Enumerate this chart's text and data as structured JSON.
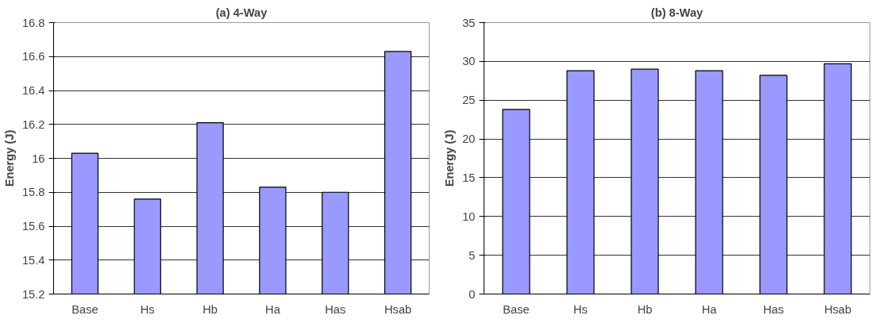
{
  "chart_data": [
    {
      "type": "bar",
      "title": "(a) 4-Way",
      "ylabel": "Energy (J)",
      "categories": [
        "Base",
        "Hs",
        "Hb",
        "Ha",
        "Has",
        "Hsab"
      ],
      "values": [
        16.03,
        15.76,
        16.21,
        15.83,
        15.8,
        16.63
      ],
      "color": "#9999ff",
      "ylim": [
        15.2,
        16.8
      ],
      "yticks": [
        15.2,
        15.4,
        15.6,
        15.8,
        16,
        16.2,
        16.4,
        16.6,
        16.8
      ],
      "grid": "y"
    },
    {
      "type": "bar",
      "title": "(b) 8-Way",
      "ylabel": "Energy (J)",
      "categories": [
        "Base",
        "Hs",
        "Hb",
        "Ha",
        "Has",
        "Hsab"
      ],
      "values": [
        23.8,
        28.8,
        29.0,
        28.8,
        28.2,
        29.7
      ],
      "color": "#9999ff",
      "ylim": [
        0,
        35
      ],
      "yticks": [
        0,
        5,
        10,
        15,
        20,
        25,
        30,
        35
      ],
      "grid": "y"
    }
  ]
}
